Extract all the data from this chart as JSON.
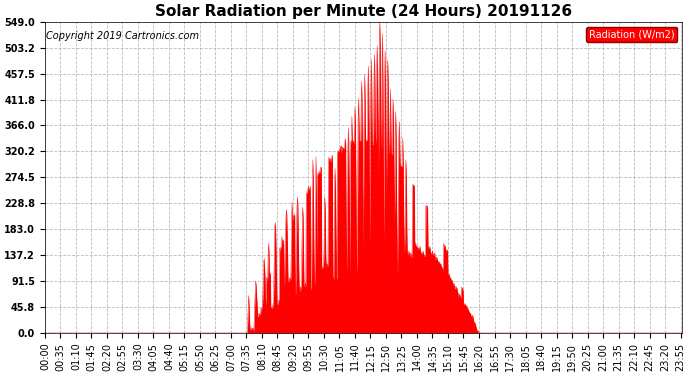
{
  "title": "Solar Radiation per Minute (24 Hours) 20191126",
  "copyright_text": "Copyright 2019 Cartronics.com",
  "legend_label": "Radiation (W/m2)",
  "yticks": [
    0.0,
    45.8,
    91.5,
    137.2,
    183.0,
    228.8,
    274.5,
    320.2,
    366.0,
    411.8,
    457.5,
    503.2,
    549.0
  ],
  "ymax": 549.0,
  "ymin": 0.0,
  "fill_color": "#FF0000",
  "line_color": "#FF0000",
  "background_color": "#FFFFFF",
  "grid_color": "#AAAAAA",
  "title_fontsize": 11,
  "copyright_fontsize": 7,
  "axis_fontsize": 7,
  "xtick_interval": 35
}
